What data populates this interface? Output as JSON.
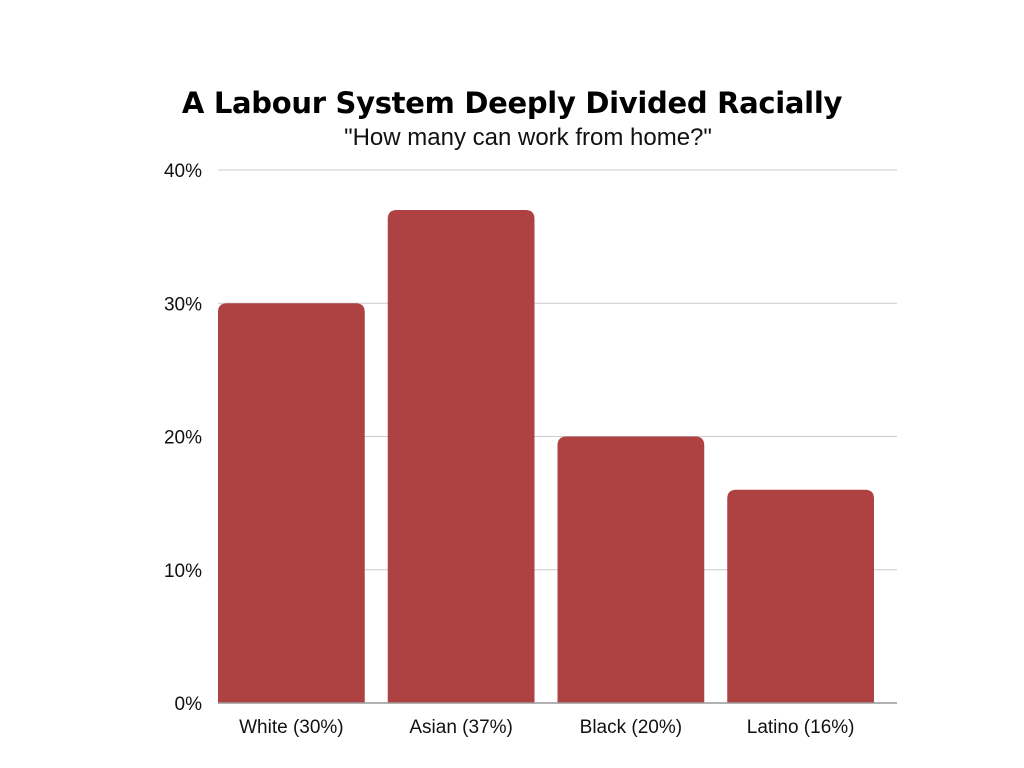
{
  "chart_data": {
    "type": "bar",
    "title": "A Labour System Deeply Divided Racially",
    "subtitle": "\"How many can work from home?\"",
    "categories": [
      "White (30%)",
      "Asian (37%)",
      "Black (20%)",
      "Latino (16%)"
    ],
    "values": [
      30,
      37,
      20,
      16
    ],
    "ylim": [
      0,
      40
    ],
    "yticks": [
      0,
      10,
      20,
      30,
      40
    ],
    "ytick_labels": [
      "0%",
      "10%",
      "20%",
      "30%",
      "40%"
    ],
    "grid": true,
    "legend": "none",
    "colors": {
      "bar": "#ae4142",
      "grid": "#cccccc",
      "axis": "#999999"
    }
  }
}
